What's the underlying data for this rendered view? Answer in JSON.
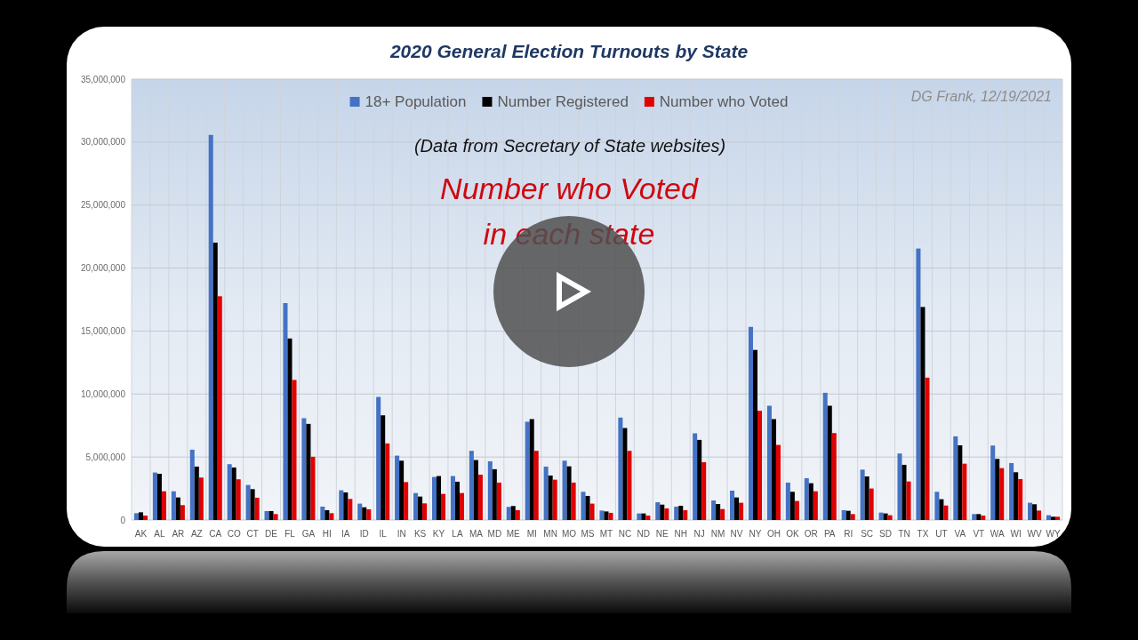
{
  "chart_data": {
    "type": "bar",
    "title": "2020 General Election Turnouts by State",
    "categories": [
      "AK",
      "AL",
      "AR",
      "AZ",
      "CA",
      "CO",
      "CT",
      "DE",
      "FL",
      "GA",
      "HI",
      "IA",
      "ID",
      "IL",
      "IN",
      "KS",
      "KY",
      "LA",
      "MA",
      "MD",
      "ME",
      "MI",
      "MN",
      "MO",
      "MS",
      "MT",
      "NC",
      "ND",
      "NE",
      "NH",
      "NJ",
      "NM",
      "NV",
      "NY",
      "OH",
      "OK",
      "OR",
      "PA",
      "RI",
      "SC",
      "SD",
      "TN",
      "TX",
      "UT",
      "VA",
      "VT",
      "WA",
      "WI",
      "WV",
      "WY"
    ],
    "series": [
      {
        "name": "18+ Population",
        "color": "#4472c4",
        "values": [
          540000,
          3770000,
          2280000,
          5580000,
          30570000,
          4430000,
          2780000,
          710000,
          17220000,
          8080000,
          1060000,
          2360000,
          1300000,
          9770000,
          5110000,
          2140000,
          3420000,
          3490000,
          5490000,
          4660000,
          1040000,
          7800000,
          4240000,
          4710000,
          2240000,
          750000,
          8130000,
          520000,
          1410000,
          1060000,
          6880000,
          1550000,
          2330000,
          15330000,
          9070000,
          2970000,
          3320000,
          10100000,
          780000,
          4000000,
          590000,
          5280000,
          21550000,
          2240000,
          6640000,
          470000,
          5910000,
          4520000,
          1370000,
          380000
        ]
      },
      {
        "name": "Number Registered",
        "color": "#000000",
        "values": [
          610000,
          3670000,
          1790000,
          4240000,
          22020000,
          4170000,
          2450000,
          710000,
          14410000,
          7630000,
          780000,
          2190000,
          1010000,
          8310000,
          4710000,
          1860000,
          3490000,
          3040000,
          4760000,
          4030000,
          1110000,
          8010000,
          3530000,
          4260000,
          1910000,
          680000,
          7300000,
          520000,
          1220000,
          1130000,
          6360000,
          1270000,
          1790000,
          13500000,
          8010000,
          2240000,
          2920000,
          9070000,
          730000,
          3460000,
          520000,
          4380000,
          16910000,
          1650000,
          5930000,
          470000,
          4850000,
          3790000,
          1250000,
          260000
        ]
      },
      {
        "name": "Number who Voted",
        "color": "#e00000",
        "values": [
          350000,
          2280000,
          1180000,
          3370000,
          17760000,
          3230000,
          1770000,
          470000,
          11120000,
          5020000,
          540000,
          1670000,
          850000,
          6080000,
          3010000,
          1320000,
          2070000,
          2140000,
          3600000,
          2970000,
          780000,
          5490000,
          3200000,
          2970000,
          1300000,
          570000,
          5490000,
          350000,
          920000,
          780000,
          4590000,
          870000,
          1370000,
          8670000,
          5960000,
          1510000,
          2280000,
          6900000,
          470000,
          2500000,
          380000,
          3060000,
          11300000,
          1150000,
          4470000,
          350000,
          4120000,
          3250000,
          750000,
          260000
        ]
      }
    ],
    "ylim": [
      0,
      35000000
    ],
    "yticks": [
      0,
      {
        "value": 5000000,
        "label": "5,000,000"
      },
      {
        "value": 10000000,
        "label": "10,000,000"
      },
      {
        "value": 15000000,
        "label": "15,000,000"
      },
      {
        "value": 20000000,
        "label": "20,000,000"
      },
      {
        "value": 25000000,
        "label": "25,000,000"
      },
      {
        "value": 30000000,
        "label": "30,000,000"
      },
      {
        "value": 35000000,
        "label": "35,000,000"
      }
    ],
    "grid": true,
    "legend": "top",
    "annotations": [
      "DG Frank, 12/19/2021",
      "(Data from Secretary of State websites)",
      "Number who Voted\nin each state"
    ]
  }
}
